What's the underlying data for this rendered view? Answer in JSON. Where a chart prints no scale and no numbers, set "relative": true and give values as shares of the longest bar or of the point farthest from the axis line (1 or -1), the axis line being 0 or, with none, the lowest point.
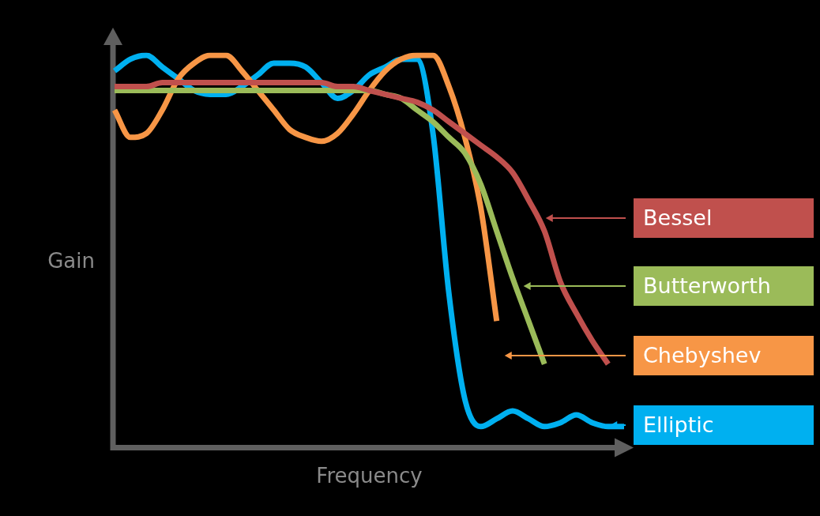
{
  "chart_data": {
    "type": "line",
    "xlabel": "Frequency",
    "ylabel": "Gain",
    "relative": true,
    "legend": "right",
    "marker": "none",
    "categories": [
      null,
      null,
      null,
      null,
      null,
      null,
      null,
      null,
      null,
      null,
      null,
      null,
      null,
      null,
      null,
      null,
      null,
      null,
      null,
      null,
      null,
      null,
      null,
      null,
      null,
      null,
      null,
      null,
      null,
      null,
      null,
      null,
      null
    ],
    "series": [
      {
        "name": "Bessel",
        "color": "#c0504d",
        "values": [
          0.92,
          0.92,
          0.92,
          0.93,
          0.93,
          0.93,
          0.93,
          0.93,
          0.93,
          0.93,
          0.93,
          0.93,
          0.93,
          0.93,
          0.92,
          0.92,
          0.91,
          0.9,
          0.89,
          0.88,
          0.86,
          0.83,
          0.8,
          0.77,
          0.74,
          0.7,
          0.63,
          0.55,
          0.42,
          0.34,
          0.27,
          0.21,
          null
        ]
      },
      {
        "name": "Butterworth",
        "color": "#9bbb59",
        "values": [
          0.91,
          0.91,
          0.91,
          0.91,
          0.91,
          0.91,
          0.91,
          0.91,
          0.91,
          0.91,
          0.91,
          0.91,
          0.91,
          0.91,
          0.91,
          0.91,
          0.91,
          0.9,
          0.89,
          0.86,
          0.83,
          0.79,
          0.75,
          0.67,
          0.55,
          0.43,
          0.32,
          0.21,
          null,
          null,
          null,
          null,
          null
        ]
      },
      {
        "name": "Chebyshev",
        "color": "#f79646",
        "values": [
          0.86,
          0.79,
          0.8,
          0.86,
          0.94,
          0.98,
          1.0,
          1.0,
          0.96,
          0.91,
          0.86,
          0.81,
          0.79,
          0.78,
          0.8,
          0.85,
          0.91,
          0.96,
          0.99,
          1.0,
          1.0,
          0.92,
          0.79,
          0.61,
          0.32,
          null,
          null,
          null,
          null,
          null,
          null,
          null,
          null
        ]
      },
      {
        "name": "Elliptic",
        "color": "#00b0f0",
        "values": [
          0.96,
          0.99,
          1.0,
          0.97,
          0.94,
          0.91,
          0.9,
          0.9,
          0.92,
          0.95,
          0.98,
          0.98,
          0.97,
          0.93,
          0.89,
          0.91,
          0.95,
          0.97,
          0.99,
          0.99,
          0.8,
          0.39,
          0.12,
          0.05,
          0.07,
          0.09,
          0.07,
          0.05,
          0.06,
          0.08,
          0.06,
          0.05,
          0.05
        ]
      }
    ]
  }
}
